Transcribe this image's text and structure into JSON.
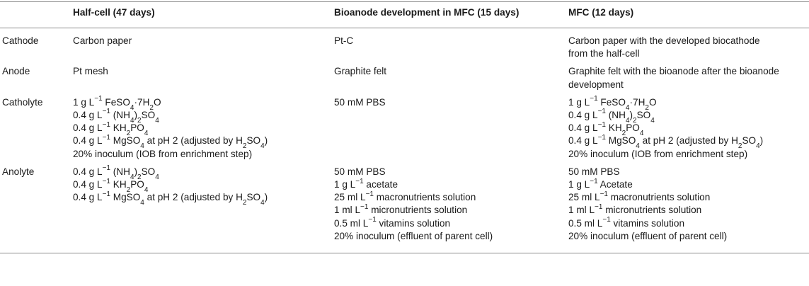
{
  "headers": [
    "",
    "Half-cell (47 days)",
    "Bioanode development in MFC (15 days)",
    "MFC (12 days)"
  ],
  "rows": [
    {
      "label": "Cathode",
      "cells": [
        [
          "Carbon paper"
        ],
        [
          "Pt-C"
        ],
        [
          "Carbon paper with the developed biocathode",
          "from the half-cell"
        ]
      ]
    },
    {
      "label": "Anode",
      "cells": [
        [
          "Pt mesh"
        ],
        [
          "Graphite felt"
        ],
        [
          "Graphite felt with the bioanode after the bioanode",
          "development"
        ]
      ]
    },
    {
      "label": "Catholyte",
      "cells": [
        [
          "1 g L<sup>−1</sup> FeSO<sub>4</sub>·7H<sub>2</sub>O",
          "0.4 g L<sup>−1</sup> (NH<sub>4</sub>)<sub>2</sub>SO<sub>4</sub>",
          "0.4 g L<sup>−1</sup> KH<sub>2</sub>PO<sub>4</sub>",
          "0.4 g L<sup>−1</sup> MgSO<sub>4</sub> at pH 2 (adjusted by H<sub>2</sub>SO<sub>4</sub>)",
          "20% inoculum (IOB from enrichment step)"
        ],
        [
          "50 mM PBS"
        ],
        [
          "1 g L<sup>−1</sup> FeSO<sub>4</sub>·7H<sub>2</sub>O",
          "0.4 g L<sup>−1</sup> (NH<sub>4</sub>)<sub>2</sub>SO<sub>4</sub>",
          "0.4 g L<sup>−1</sup> KH<sub>2</sub>PO<sub>4</sub>",
          "0.4 g L<sup>−1</sup> MgSO<sub>4</sub> at pH 2 (adjusted by H<sub>2</sub>SO<sub>4</sub>)",
          "20% inoculum (IOB from enrichment step)"
        ]
      ]
    },
    {
      "label": "Anolyte",
      "cells": [
        [
          "0.4 g L<sup>−1</sup> (NH<sub>4</sub>)<sub>2</sub>SO<sub>4</sub>",
          "0.4 g L<sup>−1</sup> KH<sub>2</sub>PO<sub>4</sub>",
          "0.4 g L<sup>−1</sup> MgSO<sub>4</sub> at pH 2 (adjusted by H<sub>2</sub>SO<sub>4</sub>)"
        ],
        [
          "50 mM PBS",
          "1 g L<sup>−1</sup> acetate",
          "25 ml L<sup>−1</sup> macronutrients solution",
          "1 ml L<sup>−1</sup> micronutrients solution",
          "0.5 ml L<sup>−1</sup> vitamins solution",
          "20% inoculum (effluent of parent cell)"
        ],
        [
          "50 mM PBS",
          "1 g L<sup>−1</sup> Acetate",
          "25 ml L<sup>−1</sup> macronutrients solution",
          "1 ml L<sup>−1</sup> micronutrients solution",
          "0.5 ml L<sup>−1</sup> vitamins solution",
          "20% inoculum (effluent of parent cell)"
        ]
      ]
    }
  ]
}
